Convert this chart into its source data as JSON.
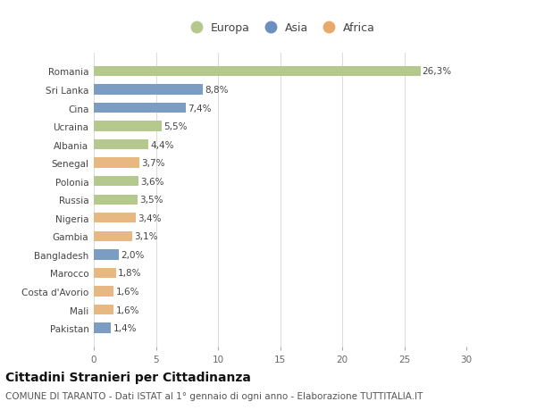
{
  "categories": [
    "Romania",
    "Sri Lanka",
    "Cina",
    "Ucraina",
    "Albania",
    "Senegal",
    "Polonia",
    "Russia",
    "Nigeria",
    "Gambia",
    "Bangladesh",
    "Marocco",
    "Costa d'Avorio",
    "Mali",
    "Pakistan"
  ],
  "values": [
    26.3,
    8.8,
    7.4,
    5.5,
    4.4,
    3.7,
    3.6,
    3.5,
    3.4,
    3.1,
    2.0,
    1.8,
    1.6,
    1.6,
    1.4
  ],
  "labels": [
    "26,3%",
    "8,8%",
    "7,4%",
    "5,5%",
    "4,4%",
    "3,7%",
    "3,6%",
    "3,5%",
    "3,4%",
    "3,1%",
    "2,0%",
    "1,8%",
    "1,6%",
    "1,6%",
    "1,4%"
  ],
  "continents": [
    "Europa",
    "Asia",
    "Asia",
    "Europa",
    "Europa",
    "Africa",
    "Europa",
    "Europa",
    "Africa",
    "Africa",
    "Asia",
    "Africa",
    "Africa",
    "Africa",
    "Asia"
  ],
  "colors": {
    "Europa": "#b5c98e",
    "Asia": "#7b9dc4",
    "Africa": "#e8b882"
  },
  "legend_colors": {
    "Europa": "#b5c98e",
    "Asia": "#6b8fbf",
    "Africa": "#e8aa6a"
  },
  "xlim": [
    0,
    30
  ],
  "xticks": [
    0,
    5,
    10,
    15,
    20,
    25,
    30
  ],
  "title": "Cittadini Stranieri per Cittadinanza",
  "subtitle": "COMUNE DI TARANTO - Dati ISTAT al 1° gennaio di ogni anno - Elaborazione TUTTITALIA.IT",
  "background_color": "#ffffff",
  "grid_color": "#dddddd",
  "bar_height": 0.55,
  "title_fontsize": 10,
  "subtitle_fontsize": 7.5,
  "label_fontsize": 7.5,
  "tick_fontsize": 7.5,
  "legend_fontsize": 9
}
